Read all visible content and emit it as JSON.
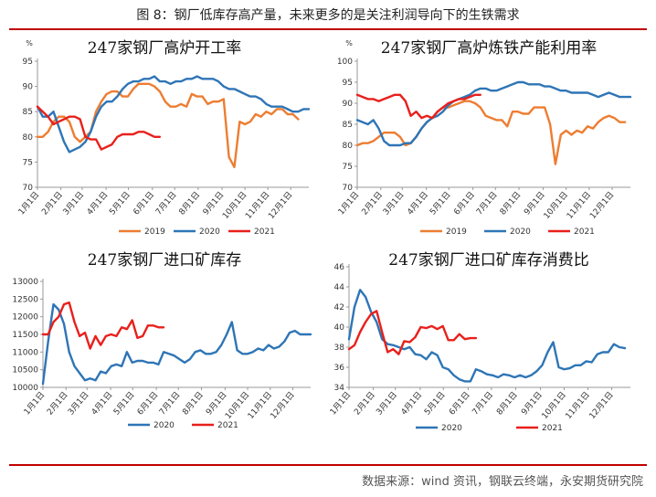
{
  "figure_title": "图 8：钢厂低库存高产量，未来更多的是关注利润导向下的生铁需求",
  "source": "数据来源：wind 资讯，钢联云终端，永安期货研究院",
  "colors": {
    "2019": "#ed7d31",
    "2020": "#2e75b6",
    "2021": "#e8201c",
    "rule": "#c00000"
  },
  "chart_data": [
    {
      "type": "line",
      "title": "247家钢厂高炉开工率",
      "unit": "%",
      "ylim": [
        70,
        95
      ],
      "yticks": [
        70,
        75,
        80,
        85,
        90,
        95
      ],
      "xlim": [
        1,
        52
      ],
      "xticks": [
        {
          "label": "1月1日",
          "x": 1
        },
        {
          "label": "2月1日",
          "x": 5.4
        },
        {
          "label": "3月1日",
          "x": 9.4
        },
        {
          "label": "4月1日",
          "x": 13.9
        },
        {
          "label": "5月1日",
          "x": 18.1
        },
        {
          "label": "6月1日",
          "x": 22.6
        },
        {
          "label": "7月1日",
          "x": 26.8
        },
        {
          "label": "8月1日",
          "x": 31.2
        },
        {
          "label": "9月1日",
          "x": 35.7
        },
        {
          "label": "10月1日",
          "x": 40
        },
        {
          "label": "11月1日",
          "x": 44.3
        },
        {
          "label": "12月1日",
          "x": 48.6
        }
      ],
      "series": [
        {
          "name": "2019",
          "x": [
            1,
            2,
            3,
            4,
            5,
            6,
            7,
            8,
            9,
            10,
            11,
            12,
            13,
            14,
            15,
            16,
            17,
            18,
            19,
            20,
            21,
            22,
            23,
            24,
            25,
            26,
            27,
            28,
            29,
            30,
            31,
            32,
            33,
            34,
            35,
            36,
            37,
            38,
            39,
            40,
            41,
            42,
            43,
            44,
            45,
            46,
            47,
            48,
            49,
            50,
            51,
            52
          ],
          "values": [
            80,
            80,
            81,
            83,
            84,
            84,
            83,
            80,
            79,
            80,
            81,
            85,
            87,
            88.5,
            89,
            89,
            88,
            88,
            89.5,
            90.5,
            90.5,
            90.5,
            90,
            89,
            87,
            86,
            86,
            86.5,
            86,
            88.5,
            88,
            88,
            86.5,
            87,
            87,
            87.5,
            76,
            74,
            83,
            82.5,
            83,
            84.5,
            84,
            85,
            84.5,
            85.5,
            85.5,
            84.5,
            84.5,
            83.5,
            null,
            null
          ]
        },
        {
          "name": "2020",
          "x": [
            1,
            2,
            3,
            4,
            5,
            6,
            7,
            8,
            9,
            10,
            11,
            12,
            13,
            14,
            15,
            16,
            17,
            18,
            19,
            20,
            21,
            22,
            23,
            24,
            25,
            26,
            27,
            28,
            29,
            30,
            31,
            32,
            33,
            34,
            35,
            36,
            37,
            38,
            39,
            40,
            41,
            42,
            43,
            44,
            45,
            46,
            47,
            48,
            49,
            50,
            51,
            52
          ],
          "values": [
            86,
            84,
            84,
            85,
            82,
            79,
            77,
            77.5,
            78,
            79,
            81,
            84,
            86,
            87,
            87,
            88,
            89.5,
            90.5,
            91,
            91,
            91.5,
            91.5,
            92,
            91,
            91,
            90.5,
            91,
            91,
            91.5,
            91.5,
            92,
            91.5,
            91.5,
            91.5,
            91,
            90,
            89.5,
            89.5,
            89,
            88.5,
            88,
            88,
            87.5,
            86.5,
            86,
            86,
            86,
            85.5,
            85,
            85,
            85.5,
            85.5
          ]
        },
        {
          "name": "2021",
          "x": [
            1,
            2,
            3,
            4,
            5,
            6,
            7,
            8,
            9,
            10,
            11,
            12,
            13,
            14,
            15,
            16,
            17,
            18,
            19,
            20,
            21,
            22,
            23,
            24
          ],
          "values": [
            86,
            85,
            84,
            82.5,
            83,
            83.5,
            84,
            84,
            83.5,
            80,
            79.5,
            79.5,
            77.5,
            78,
            78.5,
            80,
            80.5,
            80.5,
            80.5,
            81,
            81,
            80.5,
            80,
            80
          ]
        }
      ],
      "legend": [
        "2019",
        "2020",
        "2021"
      ],
      "legend_placement": "bottom"
    },
    {
      "type": "line",
      "title": "247家钢厂高炉炼铁产能利用率",
      "unit": "%",
      "ylim": [
        70,
        100
      ],
      "yticks": [
        70,
        75,
        80,
        85,
        90,
        95,
        100
      ],
      "xlim": [
        1,
        52
      ],
      "xticks": [
        {
          "label": "1月1日",
          "x": 1
        },
        {
          "label": "2月1日",
          "x": 5.4
        },
        {
          "label": "3月1日",
          "x": 9.4
        },
        {
          "label": "4月1日",
          "x": 13.9
        },
        {
          "label": "5月1日",
          "x": 18.1
        },
        {
          "label": "6月1日",
          "x": 22.6
        },
        {
          "label": "7月1日",
          "x": 26.8
        },
        {
          "label": "8月1日",
          "x": 31.2
        },
        {
          "label": "9月1日",
          "x": 35.7
        },
        {
          "label": "10月1日",
          "x": 40
        },
        {
          "label": "11月1日",
          "x": 44.3
        },
        {
          "label": "12月1日",
          "x": 48.6
        }
      ],
      "series": [
        {
          "name": "2019",
          "x": [
            1,
            2,
            3,
            4,
            5,
            6,
            7,
            8,
            9,
            10,
            11,
            12,
            13,
            14,
            15,
            16,
            17,
            18,
            19,
            20,
            21,
            22,
            23,
            24,
            25,
            26,
            27,
            28,
            29,
            30,
            31,
            32,
            33,
            34,
            35,
            36,
            37,
            38,
            39,
            40,
            41,
            42,
            43,
            44,
            45,
            46,
            47,
            48,
            49,
            50,
            51,
            52
          ],
          "values": [
            80,
            80.5,
            80.5,
            81,
            82,
            83,
            83,
            83,
            82,
            80,
            80.5,
            82,
            84,
            85.5,
            86.5,
            88,
            89,
            89,
            89.5,
            90,
            90.5,
            90.5,
            90,
            89,
            87,
            86.5,
            86,
            86,
            84.5,
            88,
            88,
            87.5,
            87.5,
            89,
            89,
            89,
            85,
            75.5,
            82.5,
            83.5,
            82.5,
            83.5,
            83,
            84.5,
            84,
            85.5,
            86.5,
            87,
            86.5,
            85.5,
            85.5,
            null
          ]
        },
        {
          "name": "2020",
          "x": [
            1,
            2,
            3,
            4,
            5,
            6,
            7,
            8,
            9,
            10,
            11,
            12,
            13,
            14,
            15,
            16,
            17,
            18,
            19,
            20,
            21,
            22,
            23,
            24,
            25,
            26,
            27,
            28,
            29,
            30,
            31,
            32,
            33,
            34,
            35,
            36,
            37,
            38,
            39,
            40,
            41,
            42,
            43,
            44,
            45,
            46,
            47,
            48,
            49,
            50,
            51,
            52
          ],
          "values": [
            86,
            85.5,
            85,
            86,
            84,
            81,
            80,
            80,
            80,
            80.5,
            80.5,
            82,
            84,
            85.5,
            86.5,
            87,
            88,
            89.5,
            90.5,
            91,
            91.5,
            92,
            93,
            93.5,
            93.5,
            93,
            93,
            93.5,
            94,
            94.5,
            95,
            95,
            94.5,
            94.5,
            94.5,
            94,
            94,
            93.5,
            93,
            93,
            92.5,
            92.5,
            92.5,
            92.5,
            92,
            91.5,
            92,
            92.5,
            92,
            91.5,
            91.5,
            91.5
          ]
        },
        {
          "name": "2021",
          "x": [
            1,
            2,
            3,
            4,
            5,
            6,
            7,
            8,
            9,
            10,
            11,
            12,
            13,
            14,
            15,
            16,
            17,
            18,
            19,
            20,
            21,
            22,
            23,
            24
          ],
          "values": [
            92,
            91.5,
            91,
            91,
            90.5,
            91,
            91.5,
            92,
            92,
            90.5,
            87,
            88,
            86.5,
            87,
            86.5,
            88,
            89,
            90,
            90.5,
            91,
            91,
            91.5,
            92,
            92
          ]
        }
      ],
      "legend": [
        "2019",
        "2020",
        "2021"
      ],
      "legend_placement": "bottom"
    },
    {
      "type": "line",
      "title": "247家钢厂进口矿库存",
      "ylim": [
        10000,
        13000
      ],
      "yticks": [
        10000,
        10500,
        11000,
        11500,
        12000,
        12500,
        13000
      ],
      "xlim": [
        1,
        52
      ],
      "xticks": [
        {
          "label": "1月1日",
          "x": 1
        },
        {
          "label": "2月1日",
          "x": 5.4
        },
        {
          "label": "3月1日",
          "x": 9.4
        },
        {
          "label": "4月1日",
          "x": 13.9
        },
        {
          "label": "5月1日",
          "x": 18.1
        },
        {
          "label": "6月1日",
          "x": 22.6
        },
        {
          "label": "7月1日",
          "x": 26.8
        },
        {
          "label": "8月1日",
          "x": 31.2
        },
        {
          "label": "9月1日",
          "x": 35.7
        },
        {
          "label": "10月1日",
          "x": 40
        },
        {
          "label": "11月1日",
          "x": 44.3
        },
        {
          "label": "12月1日",
          "x": 48.6
        }
      ],
      "series": [
        {
          "name": "2020",
          "x": [
            1,
            2,
            3,
            4,
            5,
            6,
            7,
            8,
            9,
            10,
            11,
            12,
            13,
            14,
            15,
            16,
            17,
            18,
            19,
            20,
            21,
            22,
            23,
            24,
            25,
            26,
            27,
            28,
            29,
            30,
            31,
            32,
            33,
            34,
            35,
            36,
            37,
            38,
            39,
            40,
            41,
            42,
            43,
            44,
            45,
            46,
            47,
            48,
            49,
            50,
            51,
            52
          ],
          "values": [
            10100,
            11300,
            12350,
            12200,
            11800,
            11000,
            10600,
            10400,
            10200,
            10250,
            10200,
            10450,
            10400,
            10600,
            10650,
            10600,
            11000,
            10700,
            10750,
            10750,
            10700,
            10700,
            10650,
            11000,
            10950,
            10900,
            10800,
            10700,
            10800,
            11000,
            11050,
            10950,
            10950,
            11000,
            11200,
            11500,
            11850,
            11050,
            10950,
            10950,
            11000,
            11100,
            11050,
            11200,
            11100,
            11150,
            11300,
            11550,
            11600,
            11500,
            11500,
            11500
          ]
        },
        {
          "name": "2021",
          "x": [
            1,
            2,
            3,
            4,
            5,
            6,
            7,
            8,
            9,
            10,
            11,
            12,
            13,
            14,
            15,
            16,
            17,
            18,
            19,
            20,
            21,
            22,
            23,
            24
          ],
          "values": [
            11500,
            11500,
            11850,
            12000,
            12350,
            12400,
            11850,
            11450,
            11550,
            11100,
            11450,
            11200,
            11450,
            11500,
            11450,
            11700,
            11650,
            11900,
            11400,
            11450,
            11750,
            11750,
            11700,
            11700
          ]
        }
      ],
      "legend": [
        "2020",
        "2021"
      ],
      "legend_placement": "bottom"
    },
    {
      "type": "line",
      "title": "247家钢厂进口矿库存消费比",
      "ylim": [
        34,
        46
      ],
      "yticks": [
        34,
        36,
        38,
        40,
        42,
        44,
        46
      ],
      "xlim": [
        1,
        52
      ],
      "xticks": [
        {
          "label": "1月1日",
          "x": 1
        },
        {
          "label": "2月1日",
          "x": 5.4
        },
        {
          "label": "3月1日",
          "x": 9.4
        },
        {
          "label": "4月1日",
          "x": 13.9
        },
        {
          "label": "5月1日",
          "x": 18.1
        },
        {
          "label": "6月1日",
          "x": 22.6
        },
        {
          "label": "7月1日",
          "x": 26.8
        },
        {
          "label": "8月1日",
          "x": 31.2
        },
        {
          "label": "9月1日",
          "x": 35.7
        },
        {
          "label": "10月1日",
          "x": 40
        },
        {
          "label": "11月1日",
          "x": 44.3
        },
        {
          "label": "12月1日",
          "x": 48.6
        }
      ],
      "series": [
        {
          "name": "2020",
          "x": [
            1,
            2,
            3,
            4,
            5,
            6,
            7,
            8,
            9,
            10,
            11,
            12,
            13,
            14,
            15,
            16,
            17,
            18,
            19,
            20,
            21,
            22,
            23,
            24,
            25,
            26,
            27,
            28,
            29,
            30,
            31,
            32,
            33,
            34,
            35,
            36,
            37,
            38,
            39,
            40,
            41,
            42,
            43,
            44,
            45,
            46,
            47,
            48,
            49,
            50,
            51,
            52
          ],
          "values": [
            38.8,
            42,
            43.7,
            43,
            41.5,
            40.5,
            38.8,
            38.3,
            38.2,
            38,
            37.8,
            38,
            37.3,
            37.2,
            36.8,
            37.5,
            37.2,
            36,
            35.8,
            35.2,
            34.8,
            34.6,
            34.6,
            35.8,
            35.6,
            35.3,
            35.2,
            35,
            35.3,
            35.2,
            35,
            35.2,
            35,
            35.2,
            35.6,
            36.2,
            37.5,
            38.5,
            36,
            35.8,
            35.9,
            36.2,
            36.2,
            36.6,
            36.5,
            37.3,
            37.5,
            37.5,
            38.3,
            38,
            37.9,
            null
          ]
        },
        {
          "name": "2021",
          "x": [
            1,
            2,
            3,
            4,
            5,
            6,
            7,
            8,
            9,
            10,
            11,
            12,
            13,
            14,
            15,
            16,
            17,
            18,
            19,
            20,
            21,
            22,
            23,
            24
          ],
          "values": [
            37.8,
            38.2,
            39.5,
            40.5,
            41.3,
            41.6,
            39.5,
            37.5,
            37.8,
            37.3,
            38.6,
            38.5,
            39,
            40,
            39.9,
            40.1,
            39.8,
            40.1,
            38.7,
            38.7,
            39.3,
            38.8,
            38.9,
            38.9
          ]
        }
      ],
      "legend": [
        "2020",
        "2021"
      ],
      "legend_placement": "bottom"
    }
  ]
}
